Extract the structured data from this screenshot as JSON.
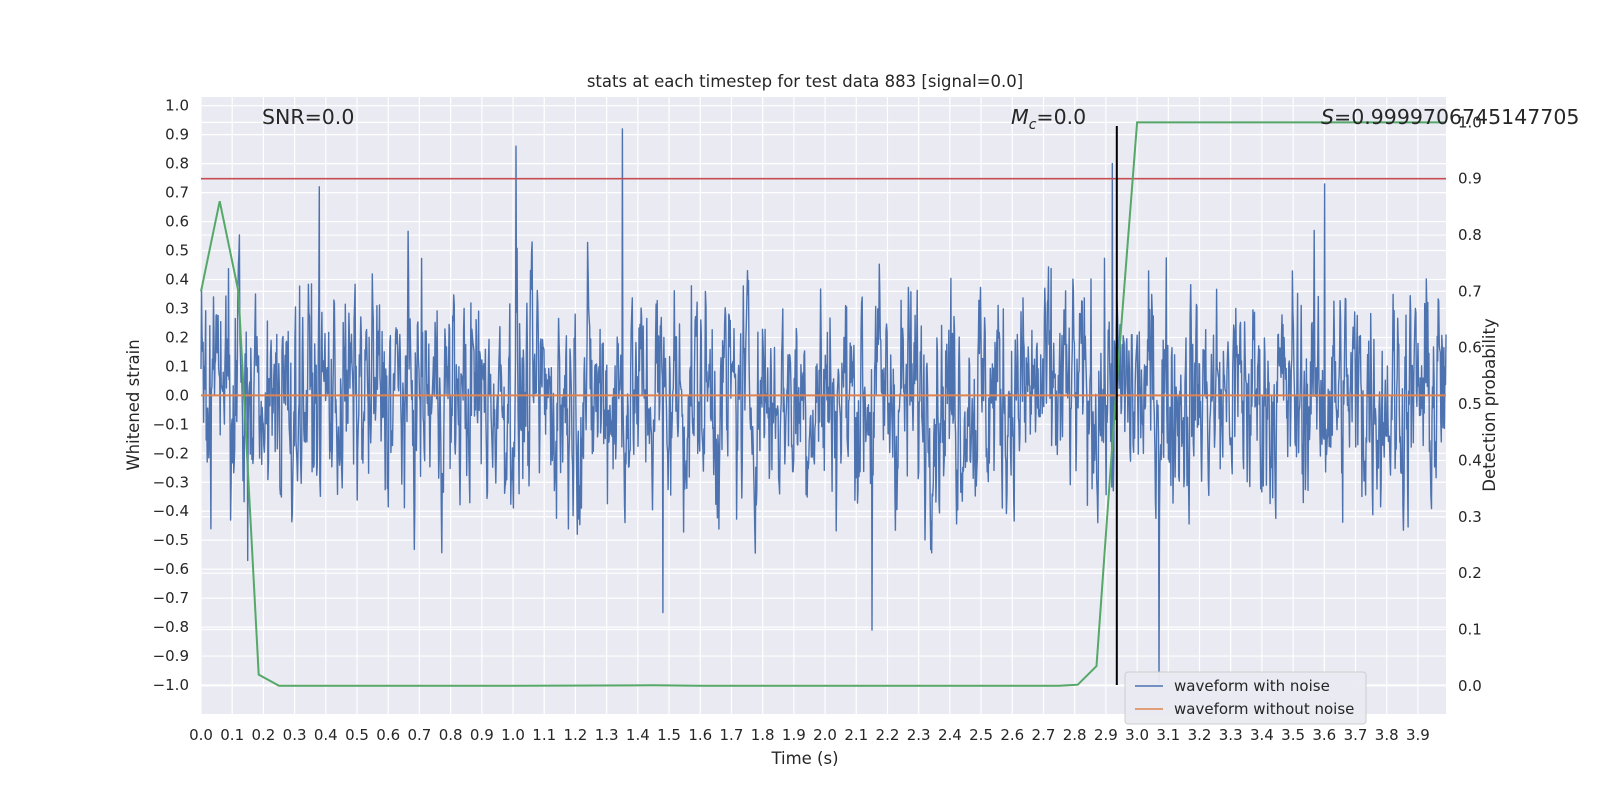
{
  "chart_data": {
    "type": "line",
    "title": "stats at each timestep for test data 883 [signal=0.0]",
    "xlabel": "Time (s)",
    "ylabel": "Whitened strain",
    "y2label": "Detection probability",
    "xlim": [
      0.0,
      3.99
    ],
    "ylim": [
      -1.1,
      1.03
    ],
    "y2lim": [
      -0.05,
      1.045
    ],
    "xticks": [
      0.0,
      0.1,
      0.2,
      0.3,
      0.4,
      0.5,
      0.6,
      0.7,
      0.8,
      0.9,
      1.0,
      1.1,
      1.2,
      1.3,
      1.4,
      1.5,
      1.6,
      1.7,
      1.8,
      1.9,
      2.0,
      2.1,
      2.2,
      2.3,
      2.4,
      2.5,
      2.6,
      2.7,
      2.8,
      2.9,
      3.0,
      3.1,
      3.2,
      3.3,
      3.4,
      3.5,
      3.6,
      3.7,
      3.8,
      3.9
    ],
    "xtick_labels": [
      "0.0",
      "0.1",
      "0.2",
      "0.3",
      "0.4",
      "0.5",
      "0.6",
      "0.7",
      "0.8",
      "0.9",
      "1.0",
      "1.1",
      "1.2",
      "1.3",
      "1.4",
      "1.5",
      "1.6",
      "1.7",
      "1.8",
      "1.9",
      "2.0",
      "2.1",
      "2.2",
      "2.3",
      "2.4",
      "2.5",
      "2.6",
      "2.7",
      "2.8",
      "2.9",
      "3.0",
      "3.1",
      "3.2",
      "3.3",
      "3.4",
      "3.5",
      "3.6",
      "3.7",
      "3.8",
      "3.9"
    ],
    "yticks": [
      1.0,
      0.9,
      0.8,
      0.7,
      0.6,
      0.5,
      0.4,
      0.3,
      0.2,
      0.1,
      0.0,
      -0.1,
      -0.2,
      -0.3,
      -0.4,
      -0.5,
      -0.6,
      -0.7,
      -0.8,
      -0.9,
      -1.0
    ],
    "ytick_labels": [
      "1.0",
      "0.9",
      "0.8",
      "0.7",
      "0.6",
      "0.5",
      "0.4",
      "0.3",
      "0.2",
      "0.1",
      "0.0",
      "−0.1",
      "−0.2",
      "−0.3",
      "−0.4",
      "−0.5",
      "−0.6",
      "−0.7",
      "−0.8",
      "−0.9",
      "−1.0"
    ],
    "y2ticks": [
      1.0,
      0.9,
      0.8,
      0.7,
      0.6,
      0.5,
      0.4,
      0.3,
      0.2,
      0.1,
      0.0
    ],
    "y2tick_labels": [
      "1.0",
      "0.9",
      "0.8",
      "0.7",
      "0.6",
      "0.5",
      "0.4",
      "0.3",
      "0.2",
      "0.1",
      "0.0"
    ],
    "grid": true,
    "background": "#eaeaf2",
    "annotations": {
      "snr": "SNR=0.0",
      "mc_symbol": "M",
      "mc_subscript": "c",
      "mc_value": "=0.0",
      "s_symbol": "S",
      "s_value": "=0.9999706745147705"
    },
    "legend": {
      "location": "lower-right",
      "entries": [
        "waveform with noise",
        "waveform without noise"
      ]
    },
    "series": [
      {
        "name": "waveform with noise",
        "color": "#4c72b0",
        "axis": "left",
        "kind": "noise",
        "sample_count": 2400,
        "typical_range": [
          -0.55,
          0.6
        ],
        "notable_spikes": [
          {
            "x": 1.01,
            "y": 0.86
          },
          {
            "x": 1.35,
            "y": 0.92
          },
          {
            "x": 0.38,
            "y": 0.72
          },
          {
            "x": 1.48,
            "y": -0.75
          },
          {
            "x": 2.15,
            "y": -0.81
          },
          {
            "x": 2.92,
            "y": 0.8
          },
          {
            "x": 3.07,
            "y": -0.99
          },
          {
            "x": 3.6,
            "y": 0.73
          },
          {
            "x": 0.15,
            "y": -0.57
          }
        ]
      },
      {
        "name": "waveform without noise",
        "color": "#dd8452",
        "axis": "left",
        "x": [
          0.0,
          3.99
        ],
        "y": [
          0.0,
          0.0
        ]
      },
      {
        "name": "",
        "color": "#55a868",
        "axis": "right",
        "x": [
          0.0,
          0.06,
          0.12,
          0.185,
          0.25,
          1.0,
          1.45,
          1.6,
          2.5,
          2.75,
          2.81,
          2.87,
          2.93,
          3.0,
          3.05,
          3.99
        ],
        "y": [
          0.7,
          0.86,
          0.7,
          0.02,
          0.0,
          0.0,
          0.001,
          0.0,
          0.0,
          0.0,
          0.002,
          0.035,
          0.5,
          1.0,
          1.0,
          1.0
        ]
      }
    ],
    "hlines": [
      {
        "y": 0.9,
        "axis": "right",
        "color": "#c44e52"
      }
    ],
    "vlines": [
      {
        "x": 2.935,
        "ymin": -1.0,
        "ymax": 0.93,
        "axis": "left",
        "color": "#000000"
      }
    ]
  }
}
